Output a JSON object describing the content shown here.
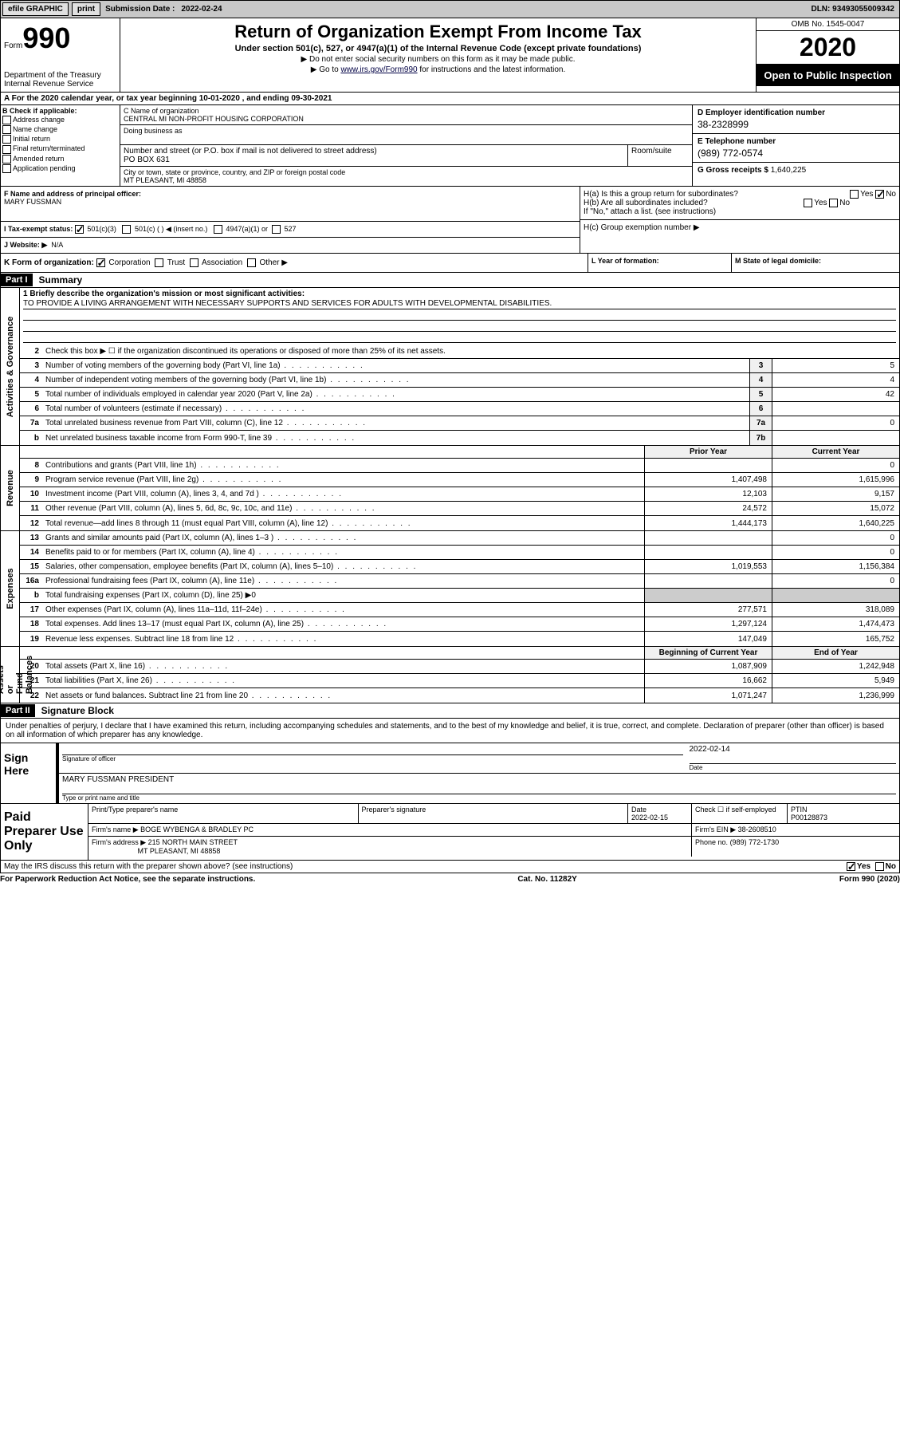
{
  "topbar": {
    "efile": "efile GRAPHIC",
    "print": "print",
    "subdate_label": "Submission Date : ",
    "subdate": "2022-02-24",
    "dln": "DLN: 93493055009342"
  },
  "formhead": {
    "form_word": "Form",
    "form_num": "990",
    "dept": "Department of the Treasury\nInternal Revenue Service",
    "title": "Return of Organization Exempt From Income Tax",
    "subtitle": "Under section 501(c), 527, or 4947(a)(1) of the Internal Revenue Code (except private foundations)",
    "note1": "▶ Do not enter social security numbers on this form as it may be made public.",
    "note2_pre": "▶ Go to ",
    "note2_link": "www.irs.gov/Form990",
    "note2_post": " for instructions and the latest information.",
    "omb": "OMB No. 1545-0047",
    "year": "2020",
    "open": "Open to Public Inspection"
  },
  "taxyear": "A For the 2020 calendar year, or tax year beginning 10-01-2020    , and ending 09-30-2021",
  "boxB": {
    "label": "B Check if applicable:",
    "items": [
      "Address change",
      "Name change",
      "Initial return",
      "Final return/terminated",
      "Amended return",
      "Application pending"
    ]
  },
  "boxC": {
    "name_label": "C Name of organization",
    "name": "CENTRAL MI NON-PROFIT HOUSING CORPORATION",
    "dba_label": "Doing business as",
    "addr_label": "Number and street (or P.O. box if mail is not delivered to street address)",
    "room_label": "Room/suite",
    "addr": "PO BOX 631",
    "city_label": "City or town, state or province, country, and ZIP or foreign postal code",
    "city": "MT PLEASANT, MI  48858"
  },
  "boxD": {
    "label": "D Employer identification number",
    "val": "38-2328999"
  },
  "boxE": {
    "label": "E Telephone number",
    "val": "(989) 772-0574"
  },
  "boxG": {
    "label": "G Gross receipts $",
    "val": "1,640,225"
  },
  "boxF": {
    "label": "F Name and address of principal officer:",
    "val": "MARY FUSSMAN"
  },
  "boxH": {
    "a": "H(a)  Is this a group return for subordinates?",
    "b": "H(b)  Are all subordinates included?",
    "b_note": "If \"No,\" attach a list. (see instructions)",
    "c": "H(c)  Group exemption number ▶",
    "yes": "Yes",
    "no": "No"
  },
  "boxI": {
    "label": "I   Tax-exempt status:",
    "opts": [
      "501(c)(3)",
      "501(c) (  ) ◀ (insert no.)",
      "4947(a)(1) or",
      "527"
    ]
  },
  "boxJ": {
    "label": "J   Website: ▶",
    "val": "N/A"
  },
  "boxK": {
    "label": "K Form of organization:",
    "opts": [
      "Corporation",
      "Trust",
      "Association",
      "Other ▶"
    ]
  },
  "boxL": "L Year of formation:",
  "boxM": "M State of legal domicile:",
  "part1": {
    "hdr": "Part I",
    "title": "Summary"
  },
  "summary": {
    "line1_label": "1   Briefly describe the organization's mission or most significant activities:",
    "line1_text": "TO PROVIDE A LIVING ARRANGEMENT WITH NECESSARY SUPPORTS AND SERVICES FOR ADULTS WITH DEVELOPMENTAL DISABILITIES.",
    "line2": "Check this box ▶ ☐  if the organization discontinued its operations or disposed of more than 25% of its net assets.",
    "rows_a": [
      {
        "n": "3",
        "d": "Number of voting members of the governing body (Part VI, line 1a)",
        "b": "3",
        "v": "5"
      },
      {
        "n": "4",
        "d": "Number of independent voting members of the governing body (Part VI, line 1b)",
        "b": "4",
        "v": "4"
      },
      {
        "n": "5",
        "d": "Total number of individuals employed in calendar year 2020 (Part V, line 2a)",
        "b": "5",
        "v": "42"
      },
      {
        "n": "6",
        "d": "Total number of volunteers (estimate if necessary)",
        "b": "6",
        "v": ""
      },
      {
        "n": "7a",
        "d": "Total unrelated business revenue from Part VIII, column (C), line 12",
        "b": "7a",
        "v": "0"
      },
      {
        "n": "b",
        "d": "Net unrelated business taxable income from Form 990-T, line 39",
        "b": "7b",
        "v": ""
      }
    ],
    "col_prior": "Prior Year",
    "col_current": "Current Year",
    "col_begin": "Beginning of Current Year",
    "col_end": "End of Year",
    "revenue": [
      {
        "n": "8",
        "d": "Contributions and grants (Part VIII, line 1h)",
        "p": "",
        "c": "0"
      },
      {
        "n": "9",
        "d": "Program service revenue (Part VIII, line 2g)",
        "p": "1,407,498",
        "c": "1,615,996"
      },
      {
        "n": "10",
        "d": "Investment income (Part VIII, column (A), lines 3, 4, and 7d )",
        "p": "12,103",
        "c": "9,157"
      },
      {
        "n": "11",
        "d": "Other revenue (Part VIII, column (A), lines 5, 6d, 8c, 9c, 10c, and 11e)",
        "p": "24,572",
        "c": "15,072"
      },
      {
        "n": "12",
        "d": "Total revenue—add lines 8 through 11 (must equal Part VIII, column (A), line 12)",
        "p": "1,444,173",
        "c": "1,640,225"
      }
    ],
    "expenses": [
      {
        "n": "13",
        "d": "Grants and similar amounts paid (Part IX, column (A), lines 1–3 )",
        "p": "",
        "c": "0"
      },
      {
        "n": "14",
        "d": "Benefits paid to or for members (Part IX, column (A), line 4)",
        "p": "",
        "c": "0"
      },
      {
        "n": "15",
        "d": "Salaries, other compensation, employee benefits (Part IX, column (A), lines 5–10)",
        "p": "1,019,553",
        "c": "1,156,384"
      },
      {
        "n": "16a",
        "d": "Professional fundraising fees (Part IX, column (A), line 11e)",
        "p": "",
        "c": "0"
      },
      {
        "n": "b",
        "d": "Total fundraising expenses (Part IX, column (D), line 25) ▶0",
        "p": null,
        "c": null
      },
      {
        "n": "17",
        "d": "Other expenses (Part IX, column (A), lines 11a–11d, 11f–24e)",
        "p": "277,571",
        "c": "318,089"
      },
      {
        "n": "18",
        "d": "Total expenses. Add lines 13–17 (must equal Part IX, column (A), line 25)",
        "p": "1,297,124",
        "c": "1,474,473"
      },
      {
        "n": "19",
        "d": "Revenue less expenses. Subtract line 18 from line 12",
        "p": "147,049",
        "c": "165,752"
      }
    ],
    "netassets": [
      {
        "n": "20",
        "d": "Total assets (Part X, line 16)",
        "p": "1,087,909",
        "c": "1,242,948"
      },
      {
        "n": "21",
        "d": "Total liabilities (Part X, line 26)",
        "p": "16,662",
        "c": "5,949"
      },
      {
        "n": "22",
        "d": "Net assets or fund balances. Subtract line 21 from line 20",
        "p": "1,071,247",
        "c": "1,236,999"
      }
    ],
    "side_gov": "Activities & Governance",
    "side_rev": "Revenue",
    "side_exp": "Expenses",
    "side_net": "Net Assets or\nFund Balances"
  },
  "part2": {
    "hdr": "Part II",
    "title": "Signature Block"
  },
  "perjury": "Under penalties of perjury, I declare that I have examined this return, including accompanying schedules and statements, and to the best of my knowledge and belief, it is true, correct, and complete. Declaration of preparer (other than officer) is based on all information of which preparer has any knowledge.",
  "sign": {
    "here": "Sign Here",
    "sig_of_officer": "Signature of officer",
    "date_label": "Date",
    "date": "2022-02-14",
    "name": "MARY FUSSMAN  PRESIDENT",
    "type_label": "Type or print name and title"
  },
  "paid": {
    "label": "Paid Preparer Use Only",
    "h_name": "Print/Type preparer's name",
    "h_sig": "Preparer's signature",
    "h_date": "Date",
    "date": "2022-02-15",
    "check_self": "Check ☐ if self-employed",
    "ptin_label": "PTIN",
    "ptin": "P00128873",
    "firm_name_label": "Firm's name    ▶",
    "firm_name": "BOGE WYBENGA & BRADLEY PC",
    "firm_ein_label": "Firm's EIN ▶",
    "firm_ein": "38-2608510",
    "firm_addr_label": "Firm's address ▶",
    "firm_addr1": "215 NORTH MAIN STREET",
    "firm_addr2": "MT PLEASANT, MI  48858",
    "phone_label": "Phone no.",
    "phone": "(989) 772-1730"
  },
  "discuss": {
    "q": "May the IRS discuss this return with the preparer shown above? (see instructions)",
    "yes": "Yes",
    "no": "No"
  },
  "footer": {
    "left": "For Paperwork Reduction Act Notice, see the separate instructions.",
    "mid": "Cat. No. 11282Y",
    "right": "Form 990 (2020)"
  }
}
